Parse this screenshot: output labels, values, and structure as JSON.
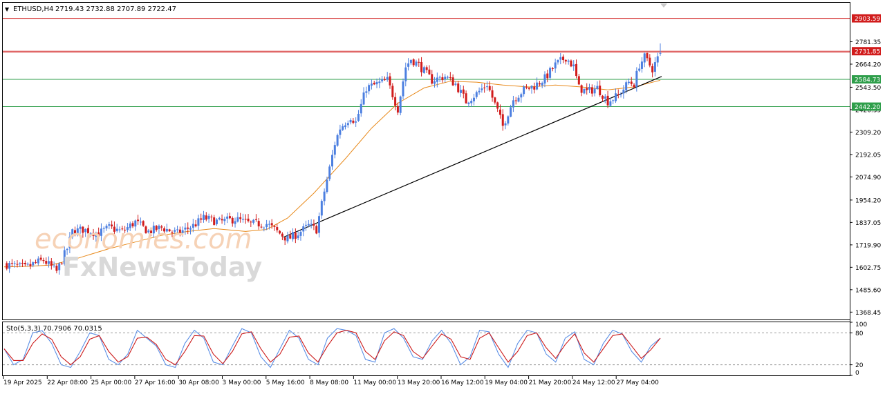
{
  "header": {
    "menu_glyph": "▼",
    "symbol": "ETHUSD,H4",
    "ohlc": "2719.43 2732.88 2707.89 2722.47"
  },
  "watermark": {
    "brand1": "economies.com",
    "brand2": "FxNewsToday"
  },
  "colors": {
    "bull": "#4c7fe0",
    "bear": "#d11c1c",
    "ma": "#e8891a",
    "resistance": "#d11c1c",
    "support": "#2e9e4a",
    "trendline": "#000000",
    "stoch_main": "#5b8fe6",
    "stoch_signal": "#cc1a1a"
  },
  "chart_data": [
    {
      "type": "candlestick",
      "symbol": "ETHUSD",
      "timeframe": "H4",
      "ylim": [
        1330,
        2985
      ],
      "price_ticks": [
        "2781.35",
        "2664.20",
        "2543.50",
        "2426.35",
        "2309.20",
        "2192.05",
        "2074.90",
        "1954.20",
        "1837.05",
        "1719.90",
        "1602.75",
        "1485.60",
        "1368.45"
      ],
      "x_labels": [
        "19 Apr 2025",
        "22 Apr 08:00",
        "25 Apr 00:00",
        "27 Apr 16:00",
        "30 Apr 08:00",
        "3 May 00:00",
        "5 May 16:00",
        "8 May 08:00",
        "11 May 00:00",
        "13 May 20:00",
        "16 May 12:00",
        "19 May 04:00",
        "21 May 20:00",
        "24 May 12:00",
        "27 May 04:00"
      ],
      "levels": [
        {
          "label": "2903.59",
          "value": 2903.59,
          "kind": "resistance"
        },
        {
          "label": "2731.85",
          "value": 2731.85,
          "kind": "resistance"
        },
        {
          "label": "2584.73",
          "value": 2584.73,
          "kind": "support"
        },
        {
          "label": "2442.20",
          "value": 2442.2,
          "kind": "support"
        }
      ],
      "trendline": [
        [
          "5 May 16:00",
          1760
        ],
        [
          "27 May 20:00",
          2600
        ]
      ],
      "moving_average": [
        [
          0,
          1605
        ],
        [
          10,
          1608
        ],
        [
          18,
          1615
        ],
        [
          28,
          1650
        ],
        [
          40,
          1700
        ],
        [
          50,
          1735
        ],
        [
          60,
          1770
        ],
        [
          70,
          1790
        ],
        [
          80,
          1805
        ],
        [
          92,
          1790
        ],
        [
          100,
          1800
        ],
        [
          108,
          1860
        ],
        [
          118,
          1990
        ],
        [
          130,
          2170
        ],
        [
          140,
          2330
        ],
        [
          150,
          2460
        ],
        [
          160,
          2540
        ],
        [
          170,
          2575
        ],
        [
          180,
          2570
        ],
        [
          190,
          2555
        ],
        [
          200,
          2545
        ],
        [
          210,
          2555
        ],
        [
          220,
          2545
        ],
        [
          230,
          2530
        ],
        [
          240,
          2545
        ],
        [
          250,
          2580
        ]
      ],
      "close_path": [
        [
          0,
          1620
        ],
        [
          4,
          1610
        ],
        [
          8,
          1600
        ],
        [
          12,
          1625
        ],
        [
          15,
          1640
        ],
        [
          18,
          1605
        ],
        [
          20,
          1580
        ],
        [
          24,
          1700
        ],
        [
          26,
          1790
        ],
        [
          30,
          1800
        ],
        [
          36,
          1780
        ],
        [
          40,
          1810
        ],
        [
          45,
          1790
        ],
        [
          50,
          1840
        ],
        [
          55,
          1790
        ],
        [
          60,
          1810
        ],
        [
          66,
          1780
        ],
        [
          72,
          1820
        ],
        [
          76,
          1860
        ],
        [
          82,
          1840
        ],
        [
          88,
          1855
        ],
        [
          94,
          1830
        ],
        [
          100,
          1830
        ],
        [
          104,
          1790
        ],
        [
          108,
          1750
        ],
        [
          112,
          1780
        ],
        [
          116,
          1820
        ],
        [
          119,
          1800
        ],
        [
          122,
          2000
        ],
        [
          124,
          2120
        ],
        [
          126,
          2250
        ],
        [
          128,
          2330
        ],
        [
          132,
          2390
        ],
        [
          134,
          2360
        ],
        [
          138,
          2540
        ],
        [
          142,
          2560
        ],
        [
          146,
          2580
        ],
        [
          150,
          2430
        ],
        [
          153,
          2650
        ],
        [
          155,
          2690
        ],
        [
          158,
          2660
        ],
        [
          163,
          2580
        ],
        [
          168,
          2600
        ],
        [
          172,
          2560
        ],
        [
          176,
          2470
        ],
        [
          180,
          2510
        ],
        [
          184,
          2560
        ],
        [
          188,
          2420
        ],
        [
          190,
          2340
        ],
        [
          194,
          2480
        ],
        [
          198,
          2530
        ],
        [
          202,
          2550
        ],
        [
          206,
          2590
        ],
        [
          210,
          2660
        ],
        [
          214,
          2700
        ],
        [
          217,
          2650
        ],
        [
          219,
          2540
        ],
        [
          222,
          2520
        ],
        [
          226,
          2540
        ],
        [
          230,
          2470
        ],
        [
          234,
          2500
        ],
        [
          238,
          2570
        ],
        [
          240,
          2560
        ],
        [
          242,
          2660
        ],
        [
          244,
          2700
        ],
        [
          247,
          2640
        ],
        [
          250,
          2722
        ]
      ],
      "last_ohlc": {
        "open": 2719.43,
        "high": 2732.88,
        "low": 2707.89,
        "close": 2722.47
      }
    },
    {
      "type": "line",
      "title": "Sto(5,3,3) 70.7906 70.0315",
      "ylim": [
        0,
        100
      ],
      "tick_labels": [
        "100",
        "80",
        "20",
        "0"
      ],
      "levels": [
        80,
        20
      ],
      "series": [
        {
          "name": "Sto(5,3,3)",
          "values": [
            50,
            20,
            30,
            80,
            84,
            60,
            20,
            15,
            45,
            80,
            75,
            30,
            20,
            40,
            85,
            70,
            55,
            20,
            15,
            60,
            85,
            70,
            25,
            20,
            55,
            88,
            80,
            35,
            15,
            50,
            85,
            70,
            30,
            20,
            70,
            88,
            85,
            75,
            30,
            25,
            80,
            88,
            70,
            35,
            30,
            65,
            85,
            60,
            20,
            35,
            85,
            82,
            40,
            15,
            60,
            85,
            80,
            40,
            25,
            70,
            82,
            30,
            20,
            60,
            85,
            78,
            45,
            25,
            55,
            70
          ]
        },
        {
          "name": "Signal",
          "values": [
            50,
            28,
            28,
            60,
            78,
            68,
            35,
            20,
            35,
            68,
            75,
            45,
            25,
            35,
            70,
            72,
            58,
            30,
            20,
            45,
            75,
            74,
            40,
            22,
            45,
            78,
            82,
            50,
            25,
            40,
            72,
            74,
            42,
            25,
            55,
            80,
            85,
            80,
            45,
            30,
            65,
            82,
            75,
            45,
            32,
            55,
            78,
            68,
            35,
            30,
            70,
            80,
            52,
            25,
            45,
            75,
            80,
            52,
            32,
            58,
            78,
            42,
            25,
            50,
            75,
            78,
            55,
            32,
            48,
            70
          ]
        }
      ]
    }
  ]
}
